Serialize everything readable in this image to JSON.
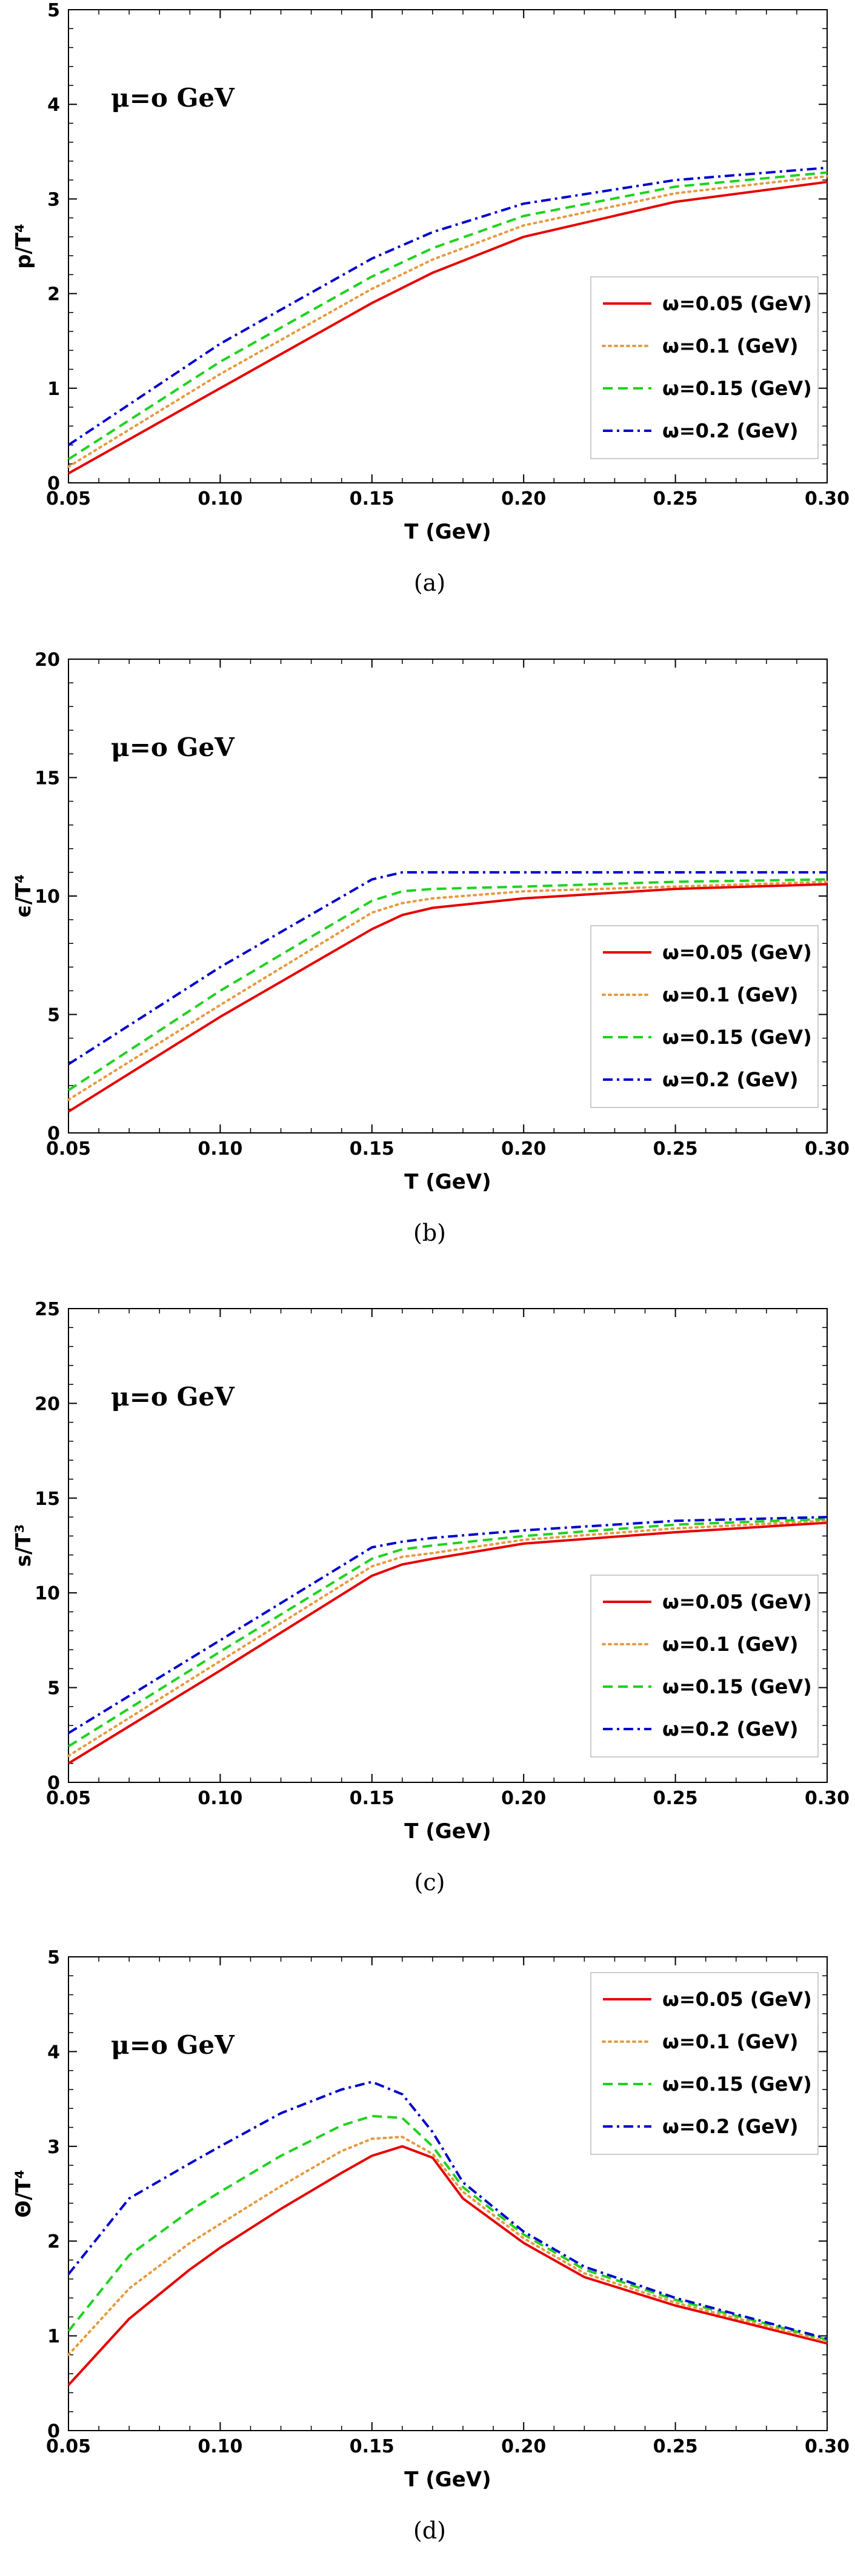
{
  "chart_data": [
    {
      "type": "line",
      "panel": "a",
      "caption": "(a)",
      "annotation": "μ=o GeV",
      "xlabel": "T (GeV)",
      "ylabel": "p/T⁴",
      "xlim": [
        0.05,
        0.3
      ],
      "ylim": [
        0,
        5
      ],
      "xticks": [
        "0.05",
        "0.10",
        "0.15",
        "0.20",
        "0.25",
        "0.30"
      ],
      "yticks": [
        "0",
        "1",
        "2",
        "3",
        "4",
        "5"
      ],
      "legend_position": "bottom-right",
      "grid": false,
      "x": [
        0.05,
        0.1,
        0.15,
        0.17,
        0.2,
        0.25,
        0.3
      ],
      "series": [
        {
          "name": "ω=0.05 (GeV)",
          "color": "#e60000",
          "dash": "solid",
          "values": [
            0.1,
            1.0,
            1.9,
            2.22,
            2.6,
            2.97,
            3.18
          ]
        },
        {
          "name": "ω=0.1 (GeV)",
          "color": "#e69a40",
          "dash": "dotted",
          "values": [
            0.17,
            1.15,
            2.05,
            2.36,
            2.72,
            3.06,
            3.24
          ]
        },
        {
          "name": "ω=0.15 (GeV)",
          "color": "#1fd21f",
          "dash": "dashed",
          "values": [
            0.25,
            1.28,
            2.18,
            2.48,
            2.82,
            3.13,
            3.28
          ]
        },
        {
          "name": "ω=0.2 (GeV)",
          "color": "#0000cc",
          "dash": "dashdot",
          "values": [
            0.4,
            1.47,
            2.37,
            2.65,
            2.95,
            3.2,
            3.33
          ]
        }
      ]
    },
    {
      "type": "line",
      "panel": "b",
      "caption": "(b)",
      "annotation": "μ=o GeV",
      "xlabel": "T (GeV)",
      "ylabel": "ϵ/T⁴",
      "xlim": [
        0.05,
        0.3
      ],
      "ylim": [
        0,
        20
      ],
      "xticks": [
        "0.05",
        "0.10",
        "0.15",
        "0.20",
        "0.25",
        "0.30"
      ],
      "yticks": [
        "0",
        "5",
        "10",
        "15",
        "20"
      ],
      "legend_position": "bottom-right",
      "grid": false,
      "x": [
        0.05,
        0.1,
        0.15,
        0.16,
        0.17,
        0.2,
        0.25,
        0.3
      ],
      "series": [
        {
          "name": "ω=0.05 (GeV)",
          "color": "#e60000",
          "dash": "solid",
          "values": [
            0.9,
            4.9,
            8.6,
            9.2,
            9.5,
            9.9,
            10.3,
            10.5
          ]
        },
        {
          "name": "ω=0.1 (GeV)",
          "color": "#e69a40",
          "dash": "dotted",
          "values": [
            1.4,
            5.4,
            9.3,
            9.7,
            9.9,
            10.2,
            10.4,
            10.6
          ]
        },
        {
          "name": "ω=0.15 (GeV)",
          "color": "#1fd21f",
          "dash": "dashed",
          "values": [
            1.8,
            6.0,
            9.8,
            10.2,
            10.3,
            10.4,
            10.6,
            10.7
          ]
        },
        {
          "name": "ω=0.2 (GeV)",
          "color": "#0000cc",
          "dash": "dashdot",
          "values": [
            2.9,
            7.0,
            10.7,
            11.0,
            11.0,
            11.0,
            11.0,
            11.0
          ]
        }
      ]
    },
    {
      "type": "line",
      "panel": "c",
      "caption": "(c)",
      "annotation": "μ=o GeV",
      "xlabel": "T (GeV)",
      "ylabel": "s/T³",
      "xlim": [
        0.05,
        0.3
      ],
      "ylim": [
        0,
        25
      ],
      "xticks": [
        "0.05",
        "0.10",
        "0.15",
        "0.20",
        "0.25",
        "0.30"
      ],
      "yticks": [
        "0",
        "5",
        "10",
        "15",
        "20",
        "25"
      ],
      "legend_position": "bottom-right",
      "grid": false,
      "x": [
        0.05,
        0.1,
        0.15,
        0.16,
        0.17,
        0.2,
        0.25,
        0.3
      ],
      "series": [
        {
          "name": "ω=0.05 (GeV)",
          "color": "#e60000",
          "dash": "solid",
          "values": [
            1.0,
            5.9,
            10.9,
            11.5,
            11.8,
            12.6,
            13.2,
            13.7
          ]
        },
        {
          "name": "ω=0.1 (GeV)",
          "color": "#e69a40",
          "dash": "dotted",
          "values": [
            1.4,
            6.4,
            11.4,
            11.9,
            12.1,
            12.8,
            13.4,
            13.8
          ]
        },
        {
          "name": "ω=0.15 (GeV)",
          "color": "#1fd21f",
          "dash": "dashed",
          "values": [
            1.9,
            6.9,
            11.8,
            12.3,
            12.5,
            13.0,
            13.6,
            13.9
          ]
        },
        {
          "name": "ω=0.2 (GeV)",
          "color": "#0000cc",
          "dash": "dashdot",
          "values": [
            2.6,
            7.5,
            12.4,
            12.7,
            12.9,
            13.3,
            13.8,
            14.0
          ]
        }
      ]
    },
    {
      "type": "line",
      "panel": "d",
      "caption": "(d)",
      "annotation": "μ=o GeV",
      "xlabel": "T (GeV)",
      "ylabel": "Θ/T⁴",
      "xlim": [
        0.05,
        0.3
      ],
      "ylim": [
        0,
        5
      ],
      "xticks": [
        "0.05",
        "0.10",
        "0.15",
        "0.20",
        "0.25",
        "0.30"
      ],
      "yticks": [
        "0",
        "1",
        "2",
        "3",
        "4",
        "5"
      ],
      "legend_position": "top-right",
      "grid": false,
      "x": [
        0.05,
        0.07,
        0.09,
        0.1,
        0.12,
        0.14,
        0.15,
        0.16,
        0.17,
        0.18,
        0.2,
        0.22,
        0.25,
        0.3
      ],
      "series": [
        {
          "name": "ω=0.05 (GeV)",
          "color": "#e60000",
          "dash": "solid",
          "values": [
            0.48,
            1.18,
            1.7,
            1.93,
            2.34,
            2.72,
            2.9,
            3.0,
            2.88,
            2.45,
            1.98,
            1.62,
            1.32,
            0.92
          ]
        },
        {
          "name": "ω=0.1 (GeV)",
          "color": "#e69a40",
          "dash": "dotted",
          "values": [
            0.8,
            1.5,
            1.98,
            2.18,
            2.58,
            2.95,
            3.08,
            3.1,
            2.92,
            2.52,
            2.03,
            1.66,
            1.35,
            0.94
          ]
        },
        {
          "name": "ω=0.15 (GeV)",
          "color": "#1fd21f",
          "dash": "dashed",
          "values": [
            1.05,
            1.85,
            2.32,
            2.52,
            2.9,
            3.22,
            3.32,
            3.3,
            3.0,
            2.57,
            2.07,
            1.7,
            1.38,
            0.96
          ]
        },
        {
          "name": "ω=0.2 (GeV)",
          "color": "#0000cc",
          "dash": "dashdot",
          "values": [
            1.65,
            2.45,
            2.82,
            3.0,
            3.35,
            3.6,
            3.68,
            3.55,
            3.15,
            2.62,
            2.1,
            1.73,
            1.4,
            0.97
          ]
        }
      ]
    }
  ]
}
